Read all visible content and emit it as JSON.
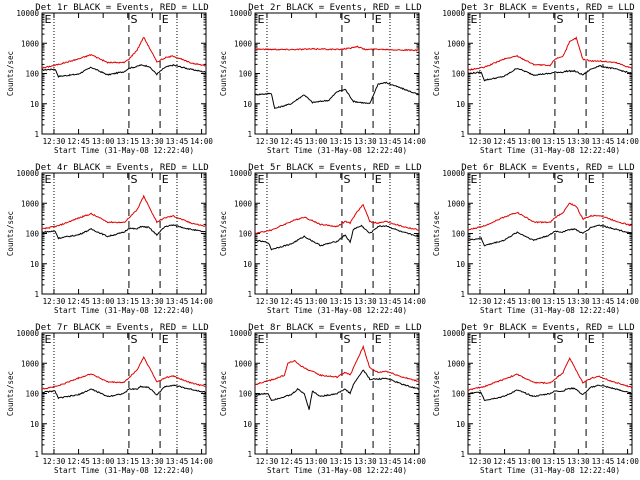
{
  "chart_data": {
    "type": "line",
    "layout": "3x3 grid",
    "shared": {
      "xlabel": "Start Time (31-May-08 12:22:40)",
      "ylabel": "Counts/sec",
      "x_tick_labels": [
        "12:30",
        "12:45",
        "13:00",
        "13:15",
        "13:30",
        "13:45",
        "14:00"
      ],
      "xlim_minutes": [
        0,
        100
      ],
      "x_ticks_minutes": [
        7.3,
        22.3,
        37.3,
        52.3,
        67.3,
        82.3,
        97.3
      ],
      "y_scale": "log",
      "ylim": [
        1,
        10000
      ],
      "y_tick_labels": [
        "1",
        "10",
        "100",
        "1000",
        "10000"
      ],
      "markers": {
        "dotted_minutes": [
          7.3,
          82.3
        ],
        "dashed_minutes": [
          53,
          72
        ],
        "labels": [
          "S",
          "E"
        ]
      },
      "colors": {
        "events": "#000000",
        "lld": "#e00000"
      },
      "series_names": [
        "Events",
        "LLD"
      ]
    },
    "panels": [
      {
        "title": "Det 1r BLACK = Events, RED = LLD",
        "marker_labels": [
          "E",
          "S",
          "E"
        ],
        "events": [
          [
            0,
            130
          ],
          [
            8,
            140
          ],
          [
            10,
            80
          ],
          [
            22,
            95
          ],
          [
            30,
            160
          ],
          [
            40,
            90
          ],
          [
            50,
            115
          ],
          [
            53,
            150
          ],
          [
            58,
            170
          ],
          [
            60,
            190
          ],
          [
            65,
            175
          ],
          [
            70,
            95
          ],
          [
            75,
            160
          ],
          [
            80,
            190
          ],
          [
            90,
            140
          ],
          [
            100,
            110
          ]
        ],
        "lld": [
          [
            0,
            150
          ],
          [
            10,
            200
          ],
          [
            22,
            300
          ],
          [
            30,
            420
          ],
          [
            40,
            230
          ],
          [
            50,
            230
          ],
          [
            53,
            300
          ],
          [
            58,
            600
          ],
          [
            62,
            1600
          ],
          [
            67,
            500
          ],
          [
            70,
            240
          ],
          [
            75,
            330
          ],
          [
            80,
            380
          ],
          [
            90,
            230
          ],
          [
            100,
            180
          ]
        ]
      },
      {
        "title": "Det 2r BLACK = Events, RED = LLD",
        "marker_labels": [
          "E",
          "S",
          "E"
        ],
        "events": [
          [
            0,
            20
          ],
          [
            10,
            22
          ],
          [
            12,
            7
          ],
          [
            22,
            10
          ],
          [
            30,
            20
          ],
          [
            35,
            11
          ],
          [
            45,
            13
          ],
          [
            50,
            25
          ],
          [
            55,
            30
          ],
          [
            60,
            12
          ],
          [
            70,
            10
          ],
          [
            75,
            45
          ],
          [
            80,
            50
          ],
          [
            95,
            25
          ],
          [
            100,
            20
          ]
        ],
        "lld": [
          [
            0,
            640
          ],
          [
            20,
            620
          ],
          [
            40,
            650
          ],
          [
            50,
            620
          ],
          [
            58,
            680
          ],
          [
            62,
            800
          ],
          [
            67,
            620
          ],
          [
            75,
            640
          ],
          [
            90,
            600
          ],
          [
            100,
            580
          ]
        ]
      },
      {
        "title": "Det 3r BLACK = Events, RED = LLD",
        "marker_labels": [
          "E",
          "S",
          "E"
        ],
        "events": [
          [
            0,
            100
          ],
          [
            8,
            110
          ],
          [
            10,
            60
          ],
          [
            22,
            80
          ],
          [
            30,
            150
          ],
          [
            40,
            90
          ],
          [
            50,
            100
          ],
          [
            53,
            110
          ],
          [
            58,
            110
          ],
          [
            60,
            120
          ],
          [
            65,
            120
          ],
          [
            70,
            90
          ],
          [
            75,
            140
          ],
          [
            80,
            180
          ],
          [
            90,
            140
          ],
          [
            100,
            100
          ]
        ],
        "lld": [
          [
            0,
            130
          ],
          [
            10,
            160
          ],
          [
            22,
            300
          ],
          [
            30,
            380
          ],
          [
            40,
            200
          ],
          [
            50,
            180
          ],
          [
            53,
            300
          ],
          [
            58,
            380
          ],
          [
            62,
            1100
          ],
          [
            66,
            1500
          ],
          [
            70,
            300
          ],
          [
            75,
            260
          ],
          [
            80,
            260
          ],
          [
            90,
            230
          ],
          [
            100,
            150
          ]
        ]
      },
      {
        "title": "Det 4r BLACK = Events, RED = LLD",
        "marker_labels": [
          "E",
          "S",
          "E"
        ],
        "events": [
          [
            0,
            110
          ],
          [
            8,
            120
          ],
          [
            10,
            70
          ],
          [
            22,
            90
          ],
          [
            30,
            140
          ],
          [
            40,
            80
          ],
          [
            50,
            110
          ],
          [
            53,
            150
          ],
          [
            58,
            140
          ],
          [
            60,
            170
          ],
          [
            65,
            160
          ],
          [
            70,
            90
          ],
          [
            75,
            170
          ],
          [
            80,
            190
          ],
          [
            90,
            140
          ],
          [
            100,
            110
          ]
        ],
        "lld": [
          [
            0,
            140
          ],
          [
            10,
            180
          ],
          [
            22,
            320
          ],
          [
            30,
            450
          ],
          [
            40,
            240
          ],
          [
            50,
            230
          ],
          [
            53,
            330
          ],
          [
            58,
            600
          ],
          [
            62,
            1700
          ],
          [
            67,
            500
          ],
          [
            70,
            240
          ],
          [
            75,
            330
          ],
          [
            80,
            380
          ],
          [
            90,
            230
          ],
          [
            100,
            170
          ]
        ]
      },
      {
        "title": "Det 5r BLACK = Events, RED = LLD",
        "marker_labels": [
          "E",
          "S",
          "E"
        ],
        "events": [
          [
            0,
            60
          ],
          [
            8,
            50
          ],
          [
            10,
            30
          ],
          [
            22,
            45
          ],
          [
            30,
            80
          ],
          [
            40,
            40
          ],
          [
            50,
            55
          ],
          [
            55,
            90
          ],
          [
            58,
            50
          ],
          [
            60,
            140
          ],
          [
            65,
            180
          ],
          [
            70,
            100
          ],
          [
            75,
            170
          ],
          [
            80,
            180
          ],
          [
            90,
            110
          ],
          [
            100,
            80
          ]
        ],
        "lld": [
          [
            0,
            100
          ],
          [
            10,
            130
          ],
          [
            22,
            250
          ],
          [
            30,
            350
          ],
          [
            40,
            200
          ],
          [
            50,
            170
          ],
          [
            55,
            250
          ],
          [
            58,
            220
          ],
          [
            62,
            500
          ],
          [
            66,
            900
          ],
          [
            70,
            250
          ],
          [
            75,
            220
          ],
          [
            80,
            250
          ],
          [
            90,
            170
          ],
          [
            100,
            130
          ]
        ]
      },
      {
        "title": "Det 6r BLACK = Events, RED = LLD",
        "marker_labels": [
          "E",
          "S",
          "E"
        ],
        "events": [
          [
            0,
            60
          ],
          [
            8,
            70
          ],
          [
            10,
            40
          ],
          [
            22,
            60
          ],
          [
            30,
            110
          ],
          [
            40,
            60
          ],
          [
            50,
            90
          ],
          [
            53,
            120
          ],
          [
            58,
            110
          ],
          [
            60,
            130
          ],
          [
            65,
            140
          ],
          [
            70,
            100
          ],
          [
            75,
            160
          ],
          [
            80,
            190
          ],
          [
            90,
            140
          ],
          [
            100,
            100
          ]
        ],
        "lld": [
          [
            0,
            130
          ],
          [
            10,
            180
          ],
          [
            22,
            350
          ],
          [
            30,
            500
          ],
          [
            40,
            240
          ],
          [
            50,
            230
          ],
          [
            53,
            330
          ],
          [
            58,
            500
          ],
          [
            62,
            1000
          ],
          [
            66,
            800
          ],
          [
            70,
            300
          ],
          [
            75,
            380
          ],
          [
            80,
            400
          ],
          [
            90,
            260
          ],
          [
            100,
            180
          ]
        ]
      },
      {
        "title": "Det 7r BLACK = Events, RED = LLD",
        "marker_labels": [
          "E",
          "S",
          "E"
        ],
        "events": [
          [
            0,
            110
          ],
          [
            8,
            120
          ],
          [
            10,
            70
          ],
          [
            22,
            90
          ],
          [
            30,
            140
          ],
          [
            40,
            80
          ],
          [
            50,
            100
          ],
          [
            53,
            140
          ],
          [
            58,
            140
          ],
          [
            60,
            170
          ],
          [
            65,
            160
          ],
          [
            70,
            90
          ],
          [
            75,
            170
          ],
          [
            80,
            190
          ],
          [
            90,
            140
          ],
          [
            100,
            110
          ]
        ],
        "lld": [
          [
            0,
            140
          ],
          [
            10,
            180
          ],
          [
            22,
            320
          ],
          [
            30,
            450
          ],
          [
            40,
            240
          ],
          [
            50,
            230
          ],
          [
            53,
            330
          ],
          [
            58,
            600
          ],
          [
            62,
            1600
          ],
          [
            67,
            500
          ],
          [
            70,
            240
          ],
          [
            75,
            330
          ],
          [
            80,
            380
          ],
          [
            90,
            230
          ],
          [
            100,
            170
          ]
        ]
      },
      {
        "title": "Det 8r BLACK = Events, RED = LLD",
        "marker_labels": [
          "E",
          "S",
          "E"
        ],
        "events": [
          [
            0,
            90
          ],
          [
            8,
            100
          ],
          [
            10,
            60
          ],
          [
            22,
            90
          ],
          [
            26,
            140
          ],
          [
            30,
            100
          ],
          [
            33,
            30
          ],
          [
            35,
            120
          ],
          [
            40,
            80
          ],
          [
            50,
            100
          ],
          [
            55,
            140
          ],
          [
            58,
            100
          ],
          [
            60,
            200
          ],
          [
            66,
            600
          ],
          [
            70,
            300
          ],
          [
            75,
            300
          ],
          [
            80,
            320
          ],
          [
            90,
            200
          ],
          [
            100,
            140
          ]
        ],
        "lld": [
          [
            0,
            200
          ],
          [
            10,
            280
          ],
          [
            18,
            400
          ],
          [
            20,
            1000
          ],
          [
            24,
            1200
          ],
          [
            27,
            900
          ],
          [
            30,
            700
          ],
          [
            40,
            400
          ],
          [
            50,
            350
          ],
          [
            55,
            500
          ],
          [
            58,
            400
          ],
          [
            62,
            1200
          ],
          [
            66,
            3500
          ],
          [
            70,
            700
          ],
          [
            75,
            500
          ],
          [
            80,
            550
          ],
          [
            90,
            350
          ],
          [
            100,
            250
          ]
        ]
      },
      {
        "title": "Det 9r BLACK = Events, RED = LLD",
        "marker_labels": [
          "E",
          "S",
          "E"
        ],
        "events": [
          [
            0,
            100
          ],
          [
            8,
            110
          ],
          [
            10,
            60
          ],
          [
            22,
            80
          ],
          [
            30,
            130
          ],
          [
            40,
            80
          ],
          [
            50,
            100
          ],
          [
            53,
            120
          ],
          [
            58,
            120
          ],
          [
            60,
            140
          ],
          [
            65,
            150
          ],
          [
            70,
            90
          ],
          [
            75,
            160
          ],
          [
            80,
            190
          ],
          [
            90,
            140
          ],
          [
            100,
            100
          ]
        ],
        "lld": [
          [
            0,
            130
          ],
          [
            10,
            170
          ],
          [
            22,
            300
          ],
          [
            30,
            430
          ],
          [
            40,
            230
          ],
          [
            50,
            220
          ],
          [
            53,
            300
          ],
          [
            58,
            500
          ],
          [
            62,
            1500
          ],
          [
            67,
            450
          ],
          [
            70,
            230
          ],
          [
            75,
            320
          ],
          [
            80,
            360
          ],
          [
            90,
            230
          ],
          [
            100,
            160
          ]
        ]
      }
    ]
  }
}
